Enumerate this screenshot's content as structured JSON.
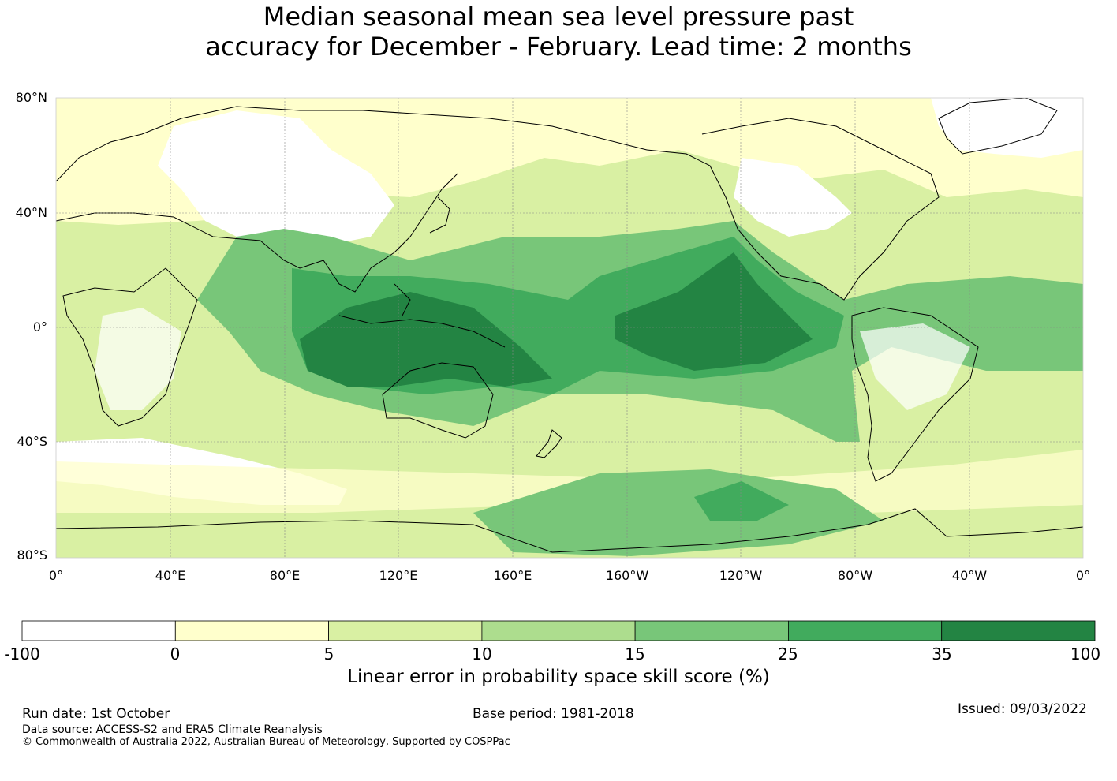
{
  "title": {
    "line1": "Median seasonal mean sea level pressure past",
    "line2": "accuracy for December - February. Lead time: 2 months"
  },
  "map": {
    "lat_labels": [
      "80°N",
      "40°N",
      "0°",
      "40°S",
      "80°S"
    ],
    "lon_labels": [
      "0°",
      "40°E",
      "80°E",
      "120°E",
      "160°E",
      "160°W",
      "120°W",
      "80°W",
      "40°W",
      "0°"
    ],
    "colors": {
      "land_outline": "#000000",
      "grid": "#888888"
    }
  },
  "colorbar": {
    "ticks": [
      "-100",
      "0",
      "5",
      "10",
      "15",
      "25",
      "35",
      "100"
    ],
    "colors": [
      "#ffffff",
      "#ffffcc",
      "#d9f0a3",
      "#addd8e",
      "#78c679",
      "#41ab5d",
      "#238443"
    ],
    "label": "Linear error in probability space skill score (%)"
  },
  "footer": {
    "run_date": "Run date: 1st October",
    "base_period": "Base period: 1981-2018",
    "issued": "Issued: 09/03/2022",
    "data_source": "Data source: ACCESS-S2 and ERA5 Climate Reanalysis",
    "copyright": "© Commonwealth of Australia 2022, Australian Bureau of Meteorology, Supported by COSPPac"
  }
}
